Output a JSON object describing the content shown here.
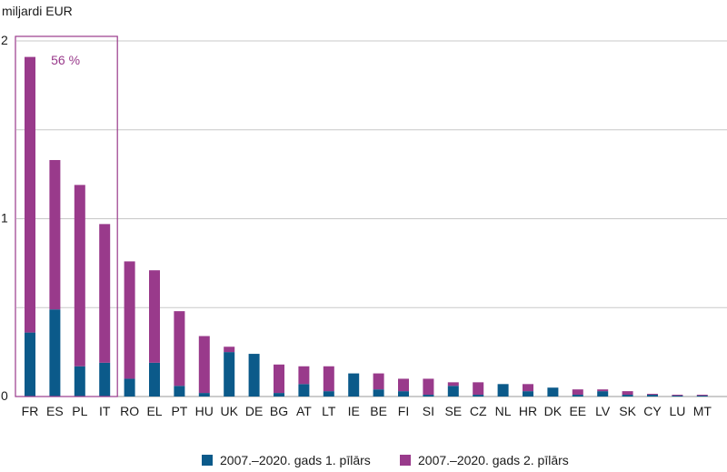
{
  "chart_data": {
    "type": "bar",
    "stacked": true,
    "unit_label": "miljardi EUR",
    "ylim": [
      0,
      2
    ],
    "yticks": [
      "0",
      "1",
      "2"
    ],
    "grid": true,
    "categories": [
      "FR",
      "ES",
      "PL",
      "IT",
      "RO",
      "EL",
      "PT",
      "HU",
      "UK",
      "DE",
      "BG",
      "AT",
      "LT",
      "IE",
      "BE",
      "FI",
      "SI",
      "SE",
      "CZ",
      "NL",
      "HR",
      "DK",
      "EE",
      "LV",
      "SK",
      "CY",
      "LU",
      "MT"
    ],
    "series": [
      {
        "name": "2007.–2020. gads 1. pīlārs",
        "color": "#0b5a8a",
        "values": [
          0.36,
          0.49,
          0.17,
          0.19,
          0.1,
          0.19,
          0.06,
          0.02,
          0.25,
          0.24,
          0.02,
          0.07,
          0.03,
          0.13,
          0.04,
          0.03,
          0.01,
          0.06,
          0.01,
          0.07,
          0.03,
          0.05,
          0.01,
          0.03,
          0.01,
          0.01,
          0.005,
          0.005
        ]
      },
      {
        "name": "2007.–2020. gads 2. pīlārs",
        "color": "#993a8b",
        "values": [
          1.55,
          0.84,
          1.02,
          0.78,
          0.66,
          0.52,
          0.42,
          0.32,
          0.03,
          0.0,
          0.16,
          0.1,
          0.14,
          0.0,
          0.09,
          0.07,
          0.09,
          0.02,
          0.07,
          0.0,
          0.04,
          0.0,
          0.03,
          0.01,
          0.02,
          0.005,
          0.005,
          0.005
        ]
      }
    ],
    "annotation": {
      "text": "56 %",
      "color": "#993a8b",
      "covers": [
        "FR",
        "ES",
        "PL",
        "IT"
      ]
    }
  }
}
